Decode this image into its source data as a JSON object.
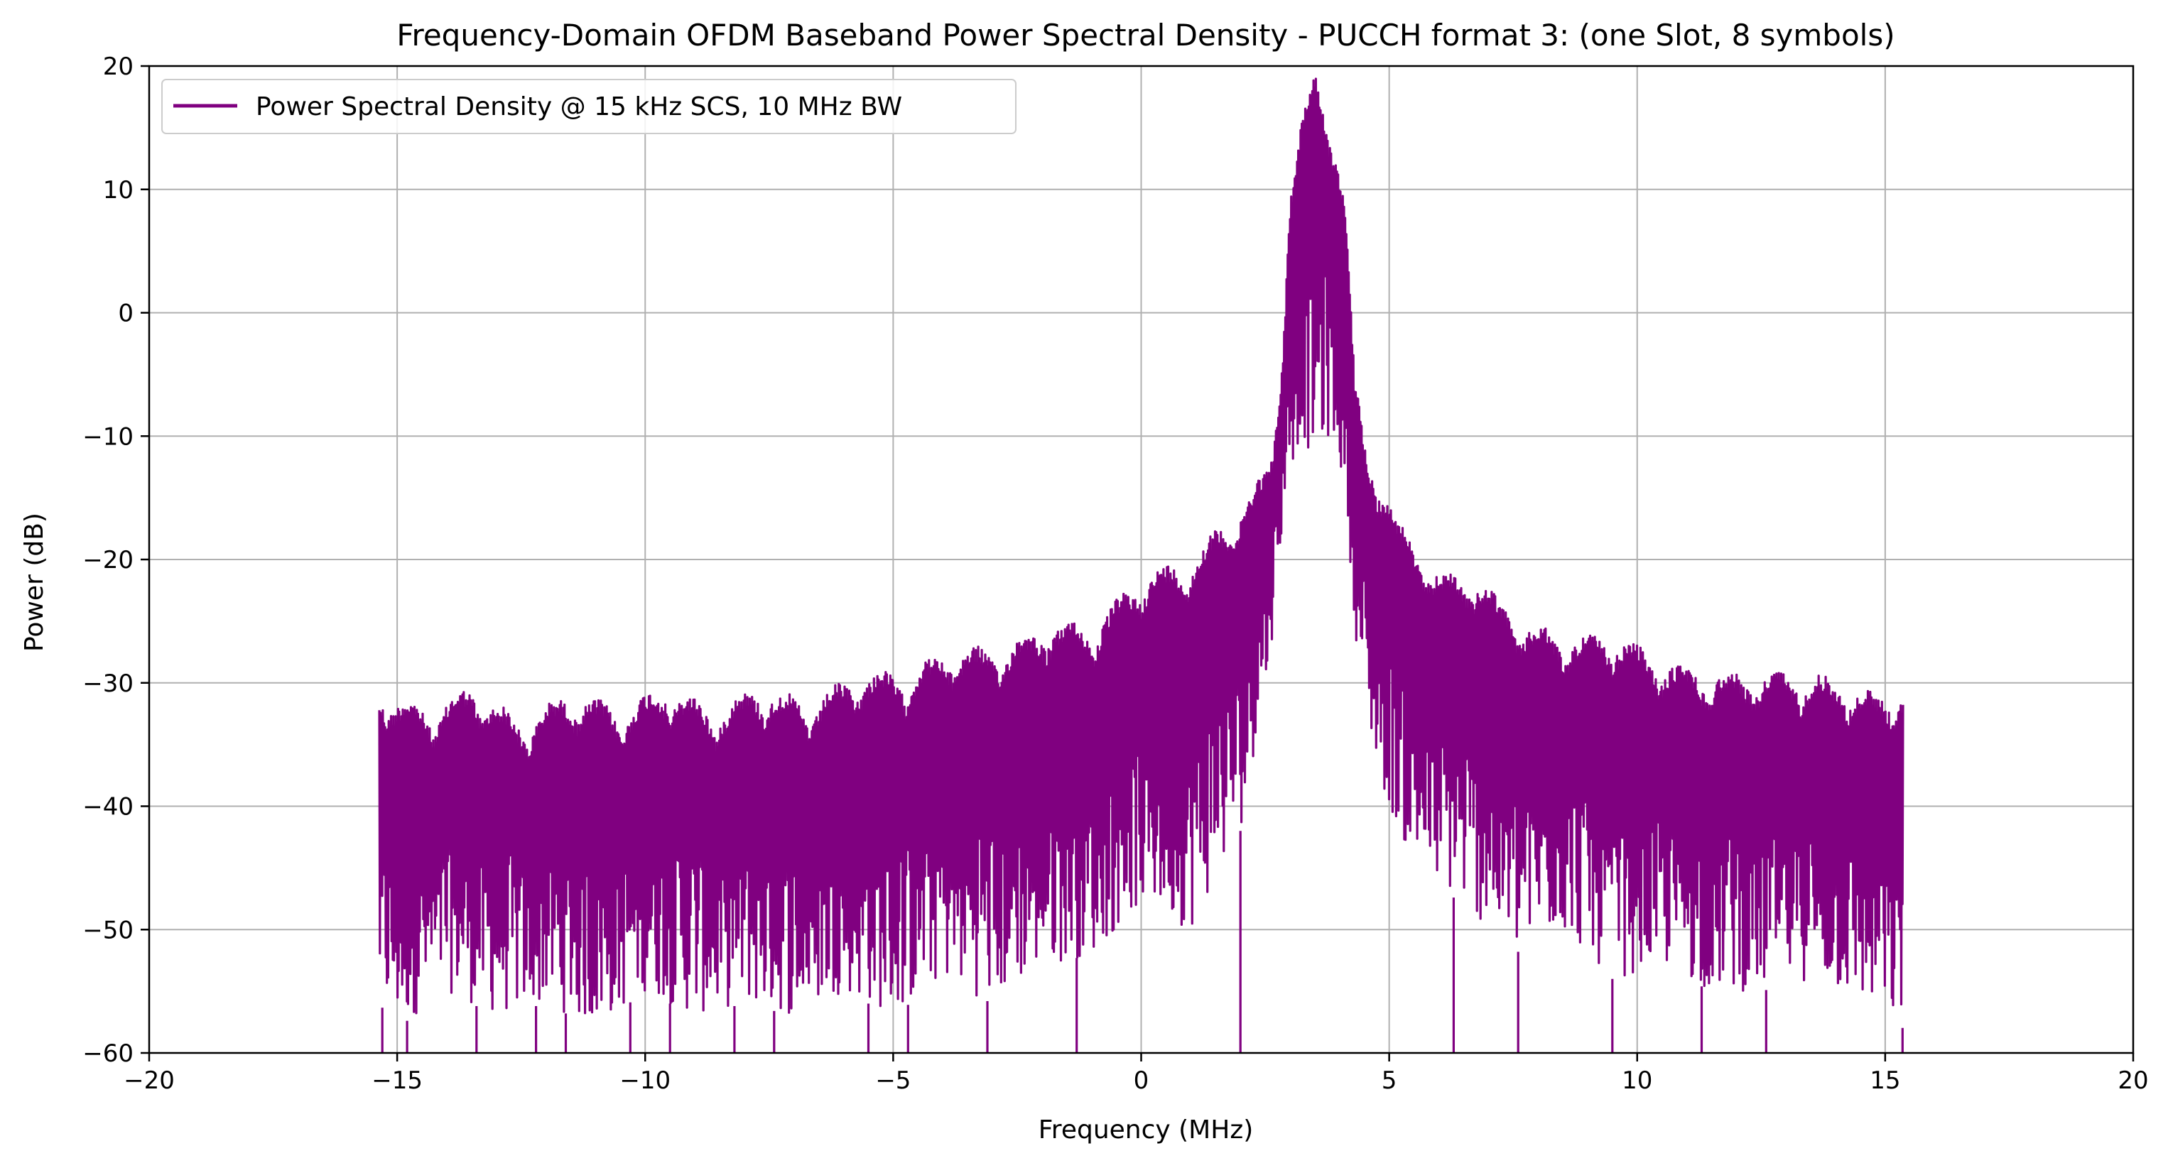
{
  "chart_data": {
    "type": "line",
    "title": "Frequency-Domain OFDM Baseband Power Spectral Density - PUCCH format 3: (one Slot, 8 symbols)",
    "xlabel": "Frequency (MHz)",
    "ylabel": "Power (dB)",
    "xlim": [
      -20,
      20
    ],
    "ylim": [
      -60,
      20
    ],
    "xticks": [
      -20,
      -15,
      -10,
      -5,
      0,
      5,
      10,
      15,
      20
    ],
    "yticks": [
      -60,
      -50,
      -40,
      -30,
      -20,
      -10,
      0,
      10,
      20
    ],
    "xtick_labels": [
      "−20",
      "−15",
      "−10",
      "−5",
      "0",
      "5",
      "10",
      "15",
      "20"
    ],
    "ytick_labels": [
      "−60",
      "−50",
      "−40",
      "−30",
      "−20",
      "−10",
      "0",
      "10",
      "20"
    ],
    "grid": true,
    "legend_position": "top-left",
    "series": [
      {
        "name": "Power Spectral Density @ 15 kHz SCS, 10 MHz BW",
        "color": "#800080",
        "envelope_upper": {
          "x": [
            -15.36,
            -15.0,
            -14.3,
            -13.5,
            -12.5,
            -11.5,
            -10.5,
            -9.6,
            -8.6,
            -7.7,
            -6.7,
            -5.7,
            -4.7,
            -3.8,
            -2.8,
            -1.9,
            -0.9,
            0.0,
            0.9,
            1.9,
            2.6,
            2.8,
            3.0,
            3.2,
            3.5,
            3.8,
            4.1,
            4.3,
            4.5,
            4.8,
            5.2,
            6.0,
            6.7,
            7.7,
            8.6,
            9.6,
            10.5,
            11.5,
            12.5,
            13.5,
            14.3,
            15.0,
            15.36
          ],
          "y": [
            -30,
            -31,
            -32,
            -30,
            -33,
            -30.5,
            -32,
            -30,
            -32,
            -30,
            -31.5,
            -29,
            -29,
            -27,
            -27,
            -25,
            -25,
            -21,
            -20,
            -16,
            -12,
            -5,
            10,
            15,
            20,
            16,
            10,
            -5,
            -10,
            -13,
            -17,
            -21,
            -21,
            -25,
            -26,
            -26,
            -28,
            -29,
            -29,
            -29,
            -30,
            -31,
            -30
          ]
        },
        "envelope_lower": {
          "x": [
            -15.36,
            -15.0,
            -14.0,
            -13.0,
            -12.0,
            -11.0,
            -10.0,
            -9.0,
            -8.0,
            -7.0,
            -6.0,
            -5.0,
            -4.0,
            -3.0,
            -2.0,
            -1.0,
            0.0,
            1.0,
            2.0,
            2.6,
            2.9,
            3.2,
            3.5,
            3.8,
            4.1,
            4.4,
            4.8,
            5.5,
            6.5,
            7.5,
            8.5,
            9.5,
            10.5,
            11.5,
            12.5,
            13.5,
            14.5,
            15.36
          ],
          "y": [
            -56,
            -58,
            -55,
            -57,
            -56,
            -58,
            -55,
            -57,
            -56,
            -57,
            -55,
            -57,
            -54,
            -56,
            -53,
            -52,
            -48,
            -50,
            -42,
            -28,
            -15,
            -10,
            -12,
            -10,
            -14,
            -30,
            -38,
            -45,
            -48,
            -52,
            -50,
            -54,
            -53,
            -55,
            -55,
            -54,
            -56,
            -58
          ]
        }
      }
    ]
  }
}
